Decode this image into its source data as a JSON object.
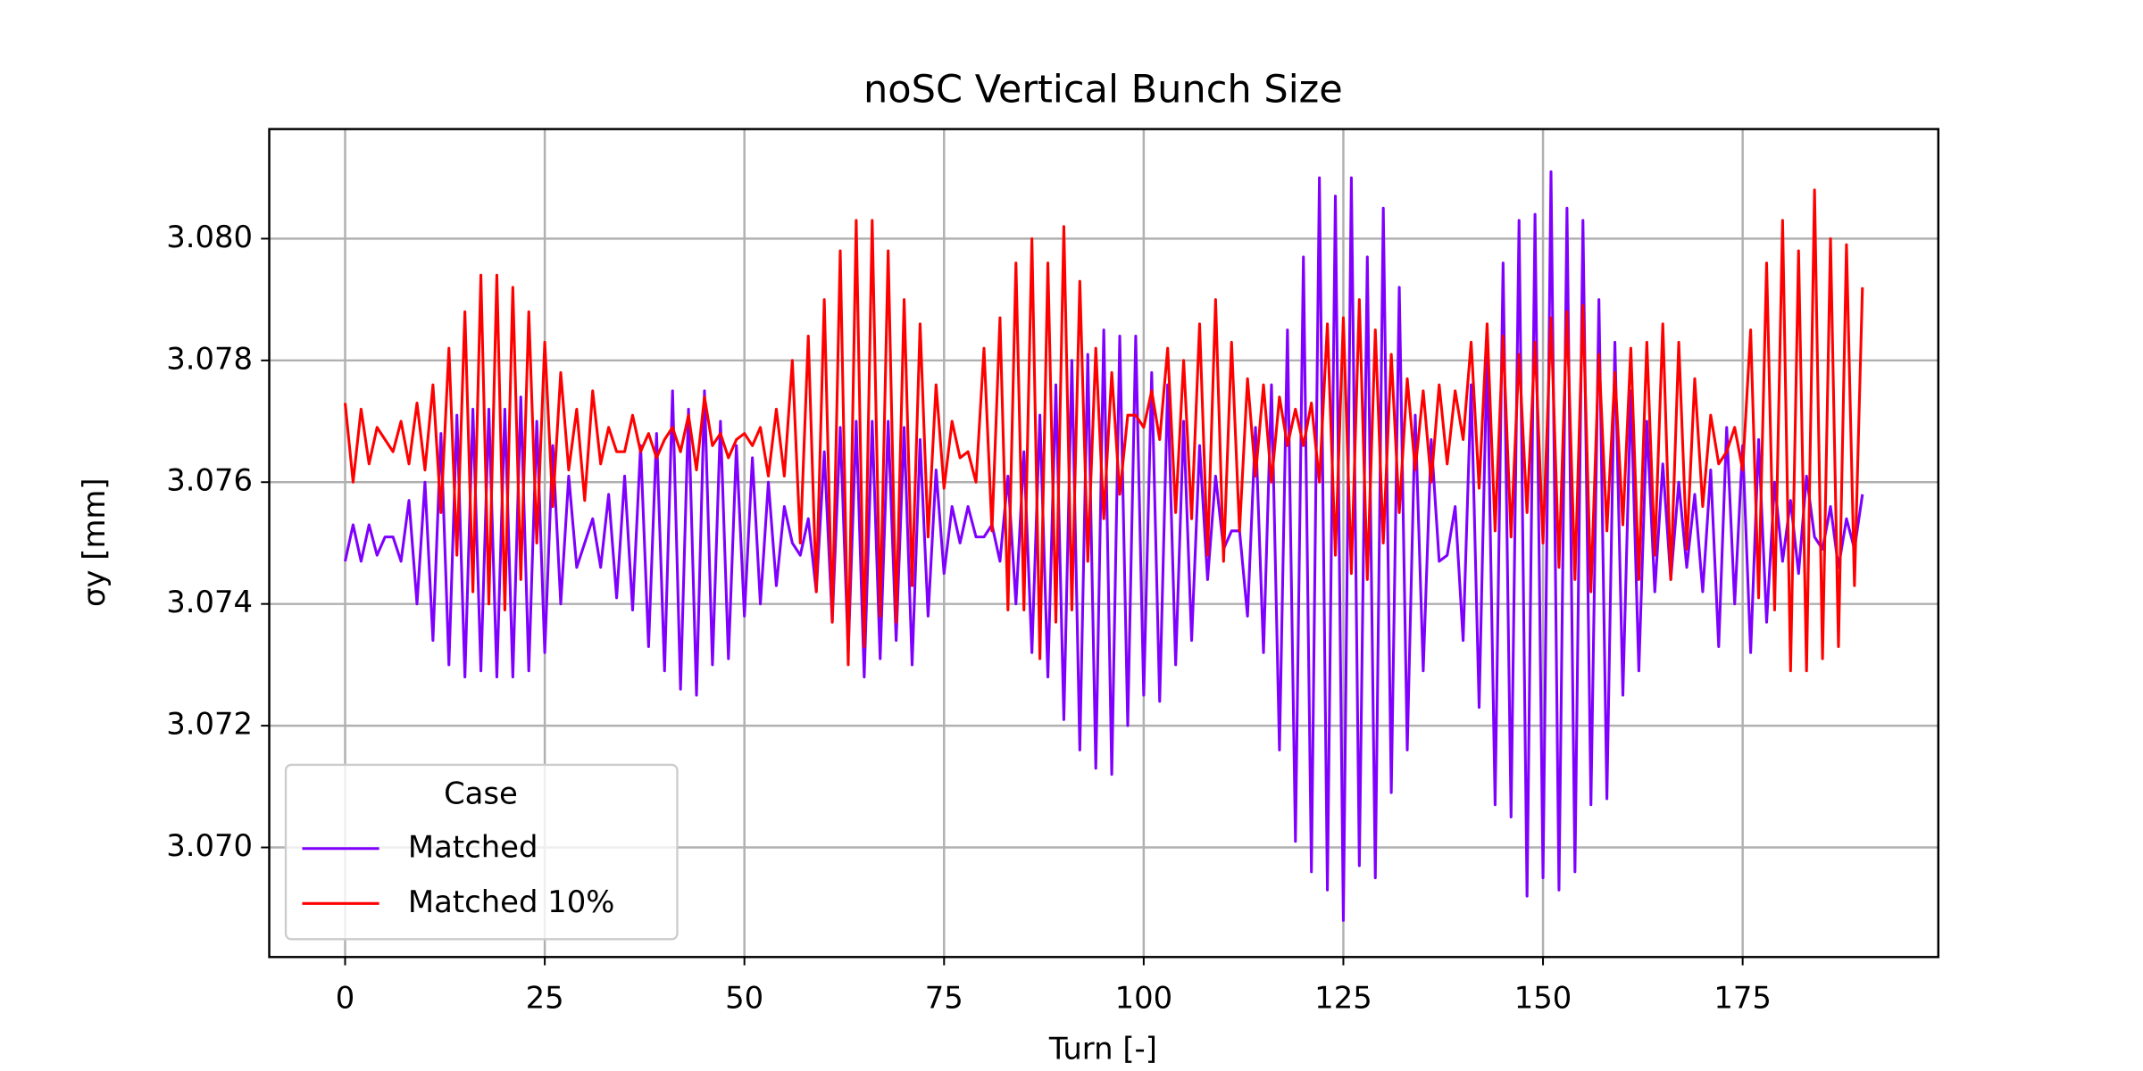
{
  "chart_data": {
    "type": "line",
    "title": "noSC Vertical Bunch Size",
    "xlabel": "Turn [-]",
    "ylabel": "σy [mm]",
    "xlim": [
      -9.5,
      199.5
    ],
    "xticks": [
      0,
      25,
      50,
      75,
      100,
      125,
      150,
      175
    ],
    "ylim": [
      3.0682,
      3.0818
    ],
    "yticks": [
      {
        "value": 3.07,
        "label": "3.070"
      },
      3.072,
      3.074,
      3.076,
      3.078,
      {
        "value": 3.08,
        "label": "3.080"
      }
    ],
    "grid": true,
    "legend": {
      "title": "Case",
      "loc": "lower left"
    },
    "x": [
      0,
      1,
      2,
      3,
      4,
      5,
      6,
      7,
      8,
      9,
      10,
      11,
      12,
      13,
      14,
      15,
      16,
      17,
      18,
      19,
      20,
      21,
      22,
      23,
      24,
      25,
      26,
      27,
      28,
      29,
      30,
      31,
      32,
      33,
      34,
      35,
      36,
      37,
      38,
      39,
      40,
      41,
      42,
      43,
      44,
      45,
      46,
      47,
      48,
      49,
      50,
      51,
      52,
      53,
      54,
      55,
      56,
      57,
      58,
      59,
      60,
      61,
      62,
      63,
      64,
      65,
      66,
      67,
      68,
      69,
      70,
      71,
      72,
      73,
      74,
      75,
      76,
      77,
      78,
      79,
      80,
      81,
      82,
      83,
      84,
      85,
      86,
      87,
      88,
      89,
      90,
      91,
      92,
      93,
      94,
      95,
      96,
      97,
      98,
      99,
      100,
      101,
      102,
      103,
      104,
      105,
      106,
      107,
      108,
      109,
      110,
      111,
      112,
      113,
      114,
      115,
      116,
      117,
      118,
      119,
      120,
      121,
      122,
      123,
      124,
      125,
      126,
      127,
      128,
      129,
      130,
      131,
      132,
      133,
      134,
      135,
      136,
      137,
      138,
      139,
      140,
      141,
      142,
      143,
      144,
      145,
      146,
      147,
      148,
      149,
      150,
      151,
      152,
      153,
      154,
      155,
      156,
      157,
      158,
      159,
      160,
      161,
      162,
      163,
      164,
      165,
      166,
      167,
      168,
      169,
      170,
      171,
      172,
      173,
      174,
      175,
      176,
      177,
      178,
      179,
      180,
      181,
      182,
      183,
      184,
      185,
      186,
      187,
      188,
      189,
      190
    ],
    "series": [
      {
        "name": "Matched",
        "color": "#7f00ff",
        "values": [
          3.0747,
          3.0753,
          3.0747,
          3.0753,
          3.0748,
          3.0751,
          3.0751,
          3.0747,
          3.0757,
          3.074,
          3.076,
          3.0734,
          3.0768,
          3.073,
          3.0771,
          3.0728,
          3.0772,
          3.0729,
          3.0772,
          3.0728,
          3.0772,
          3.0728,
          3.0774,
          3.0729,
          3.077,
          3.0732,
          3.0766,
          3.074,
          3.0761,
          3.0746,
          3.075,
          3.0754,
          3.0746,
          3.0758,
          3.0741,
          3.0761,
          3.0739,
          3.0766,
          3.0733,
          3.0768,
          3.0729,
          3.0775,
          3.0726,
          3.0772,
          3.0725,
          3.0775,
          3.073,
          3.077,
          3.0731,
          3.0766,
          3.0738,
          3.0764,
          3.074,
          3.076,
          3.0743,
          3.0756,
          3.075,
          3.0748,
          3.0754,
          3.0742,
          3.0765,
          3.0737,
          3.0769,
          3.0732,
          3.077,
          3.0728,
          3.077,
          3.0731,
          3.077,
          3.0734,
          3.0769,
          3.073,
          3.0767,
          3.0738,
          3.0762,
          3.0745,
          3.0756,
          3.075,
          3.0756,
          3.0751,
          3.0751,
          3.0753,
          3.0747,
          3.0761,
          3.074,
          3.0765,
          3.0732,
          3.0771,
          3.0728,
          3.0776,
          3.0721,
          3.078,
          3.0716,
          3.0781,
          3.0713,
          3.0785,
          3.0712,
          3.0784,
          3.072,
          3.0784,
          3.0725,
          3.0778,
          3.0724,
          3.0776,
          3.073,
          3.077,
          3.0734,
          3.0766,
          3.0744,
          3.0761,
          3.0749,
          3.0752,
          3.0752,
          3.0738,
          3.0769,
          3.0732,
          3.0776,
          3.0716,
          3.0785,
          3.0701,
          3.0797,
          3.0696,
          3.081,
          3.0693,
          3.0807,
          3.0688,
          3.081,
          3.0697,
          3.0797,
          3.0695,
          3.0805,
          3.0709,
          3.0792,
          3.0716,
          3.0771,
          3.0729,
          3.0767,
          3.0747,
          3.0748,
          3.0756,
          3.0734,
          3.0776,
          3.0723,
          3.0782,
          3.0707,
          3.0796,
          3.0705,
          3.0803,
          3.0692,
          3.0804,
          3.0695,
          3.0811,
          3.0693,
          3.0805,
          3.0696,
          3.0803,
          3.0707,
          3.079,
          3.0708,
          3.0783,
          3.0725,
          3.0775,
          3.0729,
          3.077,
          3.0742,
          3.0763,
          3.0744,
          3.076,
          3.0746,
          3.0758,
          3.0742,
          3.0762,
          3.0733,
          3.0769,
          3.074,
          3.0766,
          3.0732,
          3.0767,
          3.0737,
          3.076,
          3.0747,
          3.0757,
          3.0745,
          3.0761,
          3.0751,
          3.0749,
          3.0756,
          3.0746,
          3.0754,
          3.0749,
          3.0758
        ]
      },
      {
        "name": "Matched 10%",
        "color": "#ff0000",
        "values": [
          3.0773,
          3.076,
          3.0772,
          3.0763,
          3.0769,
          3.0767,
          3.0765,
          3.077,
          3.0763,
          3.0773,
          3.0762,
          3.0776,
          3.0755,
          3.0782,
          3.0748,
          3.0788,
          3.0742,
          3.0794,
          3.074,
          3.0794,
          3.0739,
          3.0792,
          3.0744,
          3.0788,
          3.075,
          3.0783,
          3.0756,
          3.0778,
          3.0762,
          3.0772,
          3.0757,
          3.0775,
          3.0763,
          3.0769,
          3.0765,
          3.0765,
          3.0771,
          3.0765,
          3.0768,
          3.0764,
          3.0767,
          3.0769,
          3.0765,
          3.0771,
          3.0762,
          3.0774,
          3.0766,
          3.0768,
          3.0764,
          3.0767,
          3.0768,
          3.0766,
          3.0769,
          3.0761,
          3.0772,
          3.0761,
          3.078,
          3.075,
          3.0784,
          3.0742,
          3.079,
          3.0737,
          3.0798,
          3.073,
          3.0803,
          3.0733,
          3.0803,
          3.0738,
          3.0798,
          3.0737,
          3.079,
          3.0743,
          3.0786,
          3.0751,
          3.0776,
          3.0759,
          3.077,
          3.0764,
          3.0765,
          3.076,
          3.0782,
          3.0752,
          3.0787,
          3.0739,
          3.0796,
          3.0739,
          3.08,
          3.0731,
          3.0796,
          3.0737,
          3.0802,
          3.0739,
          3.0793,
          3.0747,
          3.0782,
          3.0754,
          3.0778,
          3.0758,
          3.0771,
          3.0771,
          3.0769,
          3.0775,
          3.0767,
          3.0782,
          3.0755,
          3.078,
          3.0754,
          3.0786,
          3.0748,
          3.079,
          3.0747,
          3.0783,
          3.0752,
          3.0777,
          3.0761,
          3.0776,
          3.076,
          3.0774,
          3.0766,
          3.0772,
          3.0766,
          3.0773,
          3.076,
          3.0786,
          3.0748,
          3.0787,
          3.0745,
          3.079,
          3.0744,
          3.0785,
          3.075,
          3.0781,
          3.0755,
          3.0777,
          3.0762,
          3.0775,
          3.076,
          3.0776,
          3.0763,
          3.0775,
          3.0767,
          3.0783,
          3.0759,
          3.0786,
          3.0752,
          3.0784,
          3.0751,
          3.0781,
          3.0755,
          3.0783,
          3.075,
          3.0787,
          3.0746,
          3.0788,
          3.0744,
          3.0789,
          3.0742,
          3.0781,
          3.0752,
          3.0778,
          3.0753,
          3.0782,
          3.0744,
          3.0783,
          3.0748,
          3.0786,
          3.0744,
          3.0783,
          3.0749,
          3.0777,
          3.0756,
          3.0771,
          3.0763,
          3.0765,
          3.0769,
          3.0762,
          3.0785,
          3.0741,
          3.0796,
          3.0739,
          3.0803,
          3.0729,
          3.0798,
          3.0729,
          3.0808,
          3.0731,
          3.08,
          3.0733,
          3.0799,
          3.0743,
          3.0792
        ]
      }
    ]
  }
}
